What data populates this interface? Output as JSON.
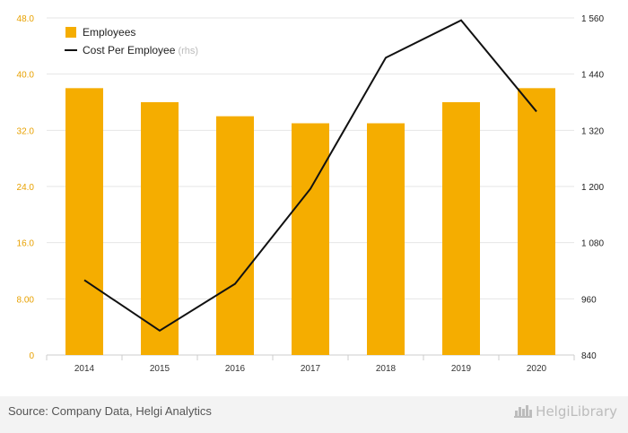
{
  "chart_data": {
    "type": "bar+line",
    "categories": [
      "2014",
      "2015",
      "2016",
      "2017",
      "2018",
      "2019",
      "2020"
    ],
    "series": [
      {
        "name": "Employees",
        "type": "bar",
        "axis": "left",
        "color": "#f5ad00",
        "values": [
          38,
          36,
          34,
          33,
          33,
          36,
          38
        ]
      },
      {
        "name": "Cost Per Employee",
        "legend_suffix": "(rhs)",
        "type": "line",
        "axis": "right",
        "color": "#111111",
        "values": [
          1000,
          892,
          992,
          1195,
          1475,
          1555,
          1360
        ]
      }
    ],
    "y_left": {
      "min": 0,
      "max": 48,
      "ticks": [
        "0",
        "8.00",
        "16.0",
        "24.0",
        "32.0",
        "40.0",
        "48.0"
      ],
      "tick_color": "#e8a100"
    },
    "y_right": {
      "min": 840,
      "max": 1560,
      "ticks": [
        "840",
        "960",
        "1 080",
        "1 200",
        "1 320",
        "1 440",
        "1 560"
      ]
    },
    "grid": true,
    "legend_position": "top-left"
  },
  "footer": {
    "source": "Source: Company Data, Helgi Analytics",
    "logo_text": "HelgiLibrary"
  }
}
